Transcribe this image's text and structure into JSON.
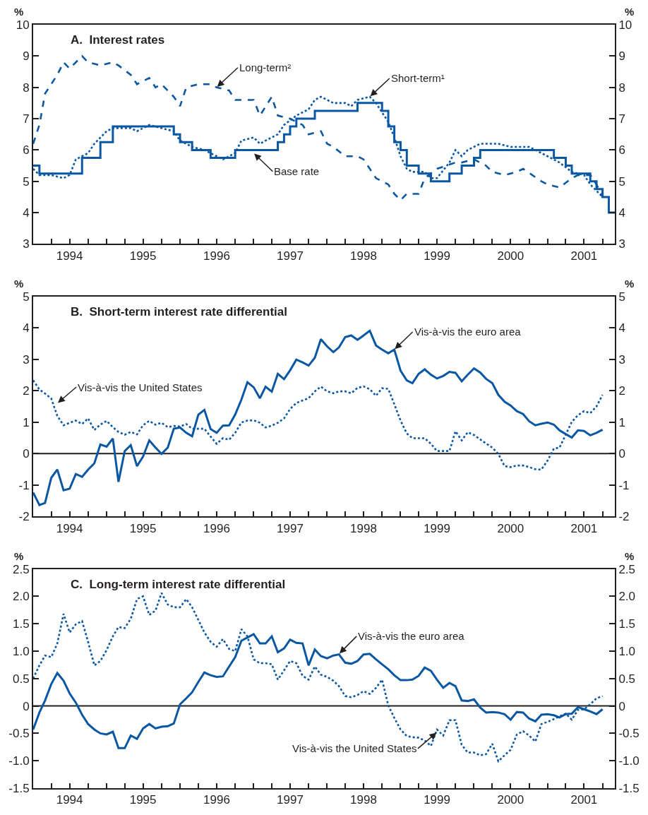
{
  "chart_data": [
    {
      "type": "line",
      "title": "A.  Interest rates",
      "ylabel": "%",
      "y2label": "%",
      "xlim": [
        "1994-01",
        "2001-12"
      ],
      "ylim": [
        3,
        10
      ],
      "yticks": [
        3,
        4,
        5,
        6,
        7,
        8,
        9,
        10
      ],
      "y2lim": [
        3,
        10
      ],
      "y2ticks": [
        3,
        4,
        5,
        6,
        7,
        8,
        9,
        10
      ],
      "xticks": [
        {
          "value": "1994-04",
          "label": null
        },
        {
          "value": "1994-07",
          "label": "1994"
        },
        {
          "value": "1994-10",
          "label": null
        },
        {
          "value": "1995-01",
          "label": null
        },
        {
          "value": "1995-04",
          "label": null
        },
        {
          "value": "1995-07",
          "label": "1995"
        },
        {
          "value": "1995-10",
          "label": null
        },
        {
          "value": "1996-01",
          "label": null
        },
        {
          "value": "1996-04",
          "label": null
        },
        {
          "value": "1996-07",
          "label": "1996"
        },
        {
          "value": "1996-10",
          "label": null
        },
        {
          "value": "1997-01",
          "label": null
        },
        {
          "value": "1997-04",
          "label": null
        },
        {
          "value": "1997-07",
          "label": "1997"
        },
        {
          "value": "1997-10",
          "label": null
        },
        {
          "value": "1998-01",
          "label": null
        },
        {
          "value": "1998-04",
          "label": null
        },
        {
          "value": "1998-07",
          "label": "1998"
        },
        {
          "value": "1998-10",
          "label": null
        },
        {
          "value": "1999-01",
          "label": null
        },
        {
          "value": "1999-04",
          "label": null
        },
        {
          "value": "1999-07",
          "label": "1999"
        },
        {
          "value": "1999-10",
          "label": null
        },
        {
          "value": "2000-01",
          "label": null
        },
        {
          "value": "2000-04",
          "label": null
        },
        {
          "value": "2000-07",
          "label": "2000"
        },
        {
          "value": "2000-10",
          "label": null
        },
        {
          "value": "2001-01",
          "label": null
        },
        {
          "value": "2001-04",
          "label": null
        },
        {
          "value": "2001-07",
          "label": "2001"
        },
        {
          "value": "2001-10",
          "label": null
        }
      ],
      "series": [
        {
          "type": "step",
          "color": "#0a57a3",
          "line_style": "solid",
          "x": [
            "1994-01",
            "1994-02",
            "1994-09",
            "1994-12",
            "1995-02",
            "1995-12",
            "1996-01",
            "1996-03",
            "1996-06",
            "1996-10",
            "1997-05",
            "1997-06",
            "1997-07",
            "1997-08",
            "1997-11",
            "1998-06",
            "1998-10",
            "1998-11",
            "1998-12",
            "1999-01",
            "1999-02",
            "1999-04",
            "1999-06",
            "1999-09",
            "1999-11",
            "2000-01",
            "2000-02",
            "2001-02",
            "2001-04",
            "2001-05",
            "2001-08",
            "2001-09",
            "2001-10",
            "2001-11",
            "2001-12"
          ],
          "values": [
            5.5,
            5.25,
            5.75,
            6.25,
            6.75,
            6.5,
            6.25,
            6.0,
            5.75,
            6.0,
            6.25,
            6.5,
            6.75,
            7.0,
            7.25,
            7.5,
            7.25,
            6.75,
            6.25,
            6.0,
            5.5,
            5.25,
            5.0,
            5.25,
            5.5,
            5.75,
            6.0,
            5.75,
            5.5,
            5.25,
            5.0,
            4.75,
            4.5,
            4.0,
            4.0
          ]
        },
        {
          "type": "line",
          "color": "#0a57a3",
          "line_style": "dotted",
          "x": [
            "1994-01",
            "1994-02",
            "1994-04",
            "1994-06",
            "1994-07",
            "1994-08",
            "1994-10",
            "1994-11",
            "1995-01",
            "1995-02",
            "1995-05",
            "1995-06",
            "1995-08",
            "1995-10",
            "1995-12",
            "1996-01",
            "1996-03",
            "1996-05",
            "1996-07",
            "1996-08",
            "1996-10",
            "1996-11",
            "1997-01",
            "1997-02",
            "1997-03",
            "1997-05",
            "1997-06",
            "1997-08",
            "1997-10",
            "1997-11",
            "1997-12",
            "1998-02",
            "1998-04",
            "1998-05",
            "1998-06",
            "1998-08",
            "1998-09",
            "1998-10",
            "1998-11",
            "1998-12",
            "1999-01",
            "1999-02",
            "1999-03",
            "1999-05",
            "1999-06",
            "1999-07",
            "1999-09",
            "1999-10",
            "1999-11",
            "1999-12",
            "2000-02",
            "2000-05",
            "2000-07",
            "2000-10",
            "2000-11",
            "2001-01",
            "2001-03",
            "2001-05",
            "2001-07",
            "2001-08",
            "2001-10"
          ],
          "values": [
            5.4,
            5.2,
            5.2,
            5.1,
            5.2,
            5.7,
            5.9,
            6.2,
            6.6,
            6.7,
            6.7,
            6.6,
            6.8,
            6.7,
            6.6,
            6.3,
            6.1,
            6.0,
            5.8,
            5.7,
            5.9,
            6.3,
            6.4,
            6.2,
            6.3,
            6.5,
            6.8,
            7.1,
            7.3,
            7.6,
            7.7,
            7.5,
            7.5,
            7.4,
            7.6,
            7.7,
            7.5,
            7.2,
            6.9,
            6.4,
            5.8,
            5.4,
            5.3,
            5.3,
            5.1,
            5.1,
            5.6,
            6.0,
            5.8,
            6.0,
            6.2,
            6.2,
            6.1,
            6.1,
            6.0,
            5.8,
            5.6,
            5.3,
            5.2,
            4.9,
            4.5
          ]
        },
        {
          "type": "line",
          "color": "#0a57a3",
          "line_style": "dashed",
          "x": [
            "1994-01",
            "1994-02",
            "1994-03",
            "1994-05",
            "1994-06",
            "1994-07",
            "1994-09",
            "1994-10",
            "1994-12",
            "1995-02",
            "1995-03",
            "1995-05",
            "1995-06",
            "1995-08",
            "1995-09",
            "1995-10",
            "1995-12",
            "1996-01",
            "1996-02",
            "1996-04",
            "1996-06",
            "1996-07",
            "1996-09",
            "1996-10",
            "1996-11",
            "1997-01",
            "1997-02",
            "1997-04",
            "1997-05",
            "1997-07",
            "1997-09",
            "1997-10",
            "1997-12",
            "1998-01",
            "1998-02",
            "1998-04",
            "1998-06",
            "1998-07",
            "1998-09",
            "1998-11",
            "1998-12",
            "1999-01",
            "1999-02",
            "1999-04",
            "1999-05",
            "1999-07",
            "1999-10",
            "1999-11",
            "2000-01",
            "2000-03",
            "2000-04",
            "2000-06",
            "2000-08",
            "2000-09",
            "2000-12",
            "2001-01",
            "2001-03",
            "2001-05",
            "2001-06",
            "2001-08",
            "2001-09",
            "2001-10"
          ],
          "values": [
            6.2,
            6.8,
            7.8,
            8.4,
            8.8,
            8.6,
            9.0,
            8.8,
            8.7,
            8.8,
            8.7,
            8.4,
            8.1,
            8.3,
            8.0,
            8.1,
            7.7,
            7.4,
            8.0,
            8.1,
            8.1,
            8.0,
            7.9,
            7.6,
            7.6,
            7.6,
            7.1,
            7.7,
            7.1,
            7.0,
            6.8,
            6.5,
            6.6,
            6.2,
            6.1,
            5.8,
            5.8,
            5.7,
            5.1,
            4.9,
            4.6,
            4.4,
            4.6,
            4.6,
            5.1,
            5.4,
            5.6,
            5.6,
            5.7,
            5.5,
            5.3,
            5.2,
            5.3,
            5.4,
            5.0,
            4.9,
            4.8,
            5.1,
            5.2,
            5.2,
            4.9,
            4.5
          ]
        }
      ],
      "annotations": [
        {
          "text": "Long-term²",
          "x": "1996-07",
          "y": 8.0
        },
        {
          "text": "Short-term¹",
          "x": "1998-08",
          "y": 7.7
        },
        {
          "text": "Base rate",
          "x": "1997-01",
          "y": 5.9
        }
      ]
    },
    {
      "type": "line",
      "title": "B.  Short-term interest rate differential",
      "ylabel": "%",
      "y2label": "%",
      "xlim": [
        "1994-01",
        "2001-12"
      ],
      "ylim": [
        -2,
        5
      ],
      "yticks": [
        -2,
        -1,
        0,
        1,
        2,
        3,
        4,
        5
      ],
      "y2lim": [
        -2,
        5
      ],
      "y2ticks": [
        -2,
        -1,
        0,
        1,
        2,
        3,
        4,
        5
      ],
      "xticks": [
        {
          "value": "1994-04",
          "label": null
        },
        {
          "value": "1994-07",
          "label": "1994"
        },
        {
          "value": "1994-10",
          "label": null
        },
        {
          "value": "1995-01",
          "label": null
        },
        {
          "value": "1995-04",
          "label": null
        },
        {
          "value": "1995-07",
          "label": "1995"
        },
        {
          "value": "1995-10",
          "label": null
        },
        {
          "value": "1996-01",
          "label": null
        },
        {
          "value": "1996-04",
          "label": null
        },
        {
          "value": "1996-07",
          "label": "1996"
        },
        {
          "value": "1996-10",
          "label": null
        },
        {
          "value": "1997-01",
          "label": null
        },
        {
          "value": "1997-04",
          "label": null
        },
        {
          "value": "1997-07",
          "label": "1997"
        },
        {
          "value": "1997-10",
          "label": null
        },
        {
          "value": "1998-01",
          "label": null
        },
        {
          "value": "1998-04",
          "label": null
        },
        {
          "value": "1998-07",
          "label": "1998"
        },
        {
          "value": "1998-10",
          "label": null
        },
        {
          "value": "1999-01",
          "label": null
        },
        {
          "value": "1999-04",
          "label": null
        },
        {
          "value": "1999-07",
          "label": "1999"
        },
        {
          "value": "1999-10",
          "label": null
        },
        {
          "value": "2000-01",
          "label": null
        },
        {
          "value": "2000-04",
          "label": null
        },
        {
          "value": "2000-07",
          "label": "2000"
        },
        {
          "value": "2000-10",
          "label": null
        },
        {
          "value": "2001-01",
          "label": null
        },
        {
          "value": "2001-04",
          "label": null
        },
        {
          "value": "2001-07",
          "label": "2001"
        },
        {
          "value": "2001-10",
          "label": null
        }
      ],
      "x": [
        "1994-01",
        "1994-02",
        "1994-03",
        "1994-04",
        "1994-05",
        "1994-06",
        "1994-07",
        "1994-08",
        "1994-09",
        "1994-10",
        "1994-11",
        "1994-12",
        "1995-01",
        "1995-02",
        "1995-03",
        "1995-04",
        "1995-05",
        "1995-06",
        "1995-07",
        "1995-08",
        "1995-09",
        "1995-10",
        "1995-11",
        "1995-12",
        "1996-01",
        "1996-02",
        "1996-03",
        "1996-04",
        "1996-05",
        "1996-06",
        "1996-07",
        "1996-08",
        "1996-09",
        "1996-10",
        "1996-11",
        "1996-12",
        "1997-01",
        "1997-02",
        "1997-03",
        "1997-04",
        "1997-05",
        "1997-06",
        "1997-07",
        "1997-08",
        "1997-09",
        "1997-10",
        "1997-11",
        "1997-12",
        "1998-01",
        "1998-02",
        "1998-03",
        "1998-04",
        "1998-05",
        "1998-06",
        "1998-07",
        "1998-08",
        "1998-09",
        "1998-10",
        "1998-11",
        "1998-12",
        "1999-01",
        "1999-02",
        "1999-03",
        "1999-04",
        "1999-05",
        "1999-06",
        "1999-07",
        "1999-08",
        "1999-09",
        "1999-10",
        "1999-11",
        "1999-12",
        "2000-01",
        "2000-02",
        "2000-03",
        "2000-04",
        "2000-05",
        "2000-06",
        "2000-07",
        "2000-08",
        "2000-09",
        "2000-10",
        "2000-11",
        "2000-12",
        "2001-01",
        "2001-02",
        "2001-03",
        "2001-04",
        "2001-05",
        "2001-06",
        "2001-07",
        "2001-08",
        "2001-09",
        "2001-10"
      ],
      "series": [
        {
          "color": "#0a57a3",
          "line_style": "solid",
          "values": [
            -1.24,
            -1.64,
            -1.57,
            -0.77,
            -0.51,
            -1.17,
            -1.12,
            -0.65,
            -0.74,
            -0.51,
            -0.31,
            0.29,
            0.22,
            0.48,
            -0.9,
            0.08,
            0.27,
            -0.4,
            -0.1,
            0.42,
            0.19,
            -0.01,
            0.19,
            0.79,
            0.83,
            0.66,
            0.55,
            1.24,
            1.39,
            0.78,
            0.66,
            0.89,
            0.9,
            1.24,
            1.72,
            2.27,
            2.11,
            1.76,
            2.13,
            1.97,
            2.54,
            2.37,
            2.65,
            2.99,
            2.9,
            2.8,
            3.05,
            3.64,
            3.41,
            3.23,
            3.38,
            3.71,
            3.76,
            3.62,
            3.76,
            3.91,
            3.44,
            3.31,
            3.19,
            3.31,
            2.64,
            2.33,
            2.24,
            2.54,
            2.68,
            2.51,
            2.39,
            2.47,
            2.6,
            2.57,
            2.3,
            2.51,
            2.71,
            2.58,
            2.38,
            2.24,
            1.87,
            1.65,
            1.53,
            1.35,
            1.26,
            1.03,
            0.9,
            0.95,
            0.99,
            0.92,
            0.74,
            0.62,
            0.51,
            0.74,
            0.72,
            0.58,
            0.66,
            0.76
          ]
        },
        {
          "color": "#0a57a3",
          "line_style": "dotted",
          "values": [
            2.33,
            2.04,
            1.91,
            1.75,
            1.2,
            0.9,
            0.98,
            1.05,
            0.94,
            1.12,
            0.75,
            0.92,
            1.04,
            0.84,
            0.69,
            0.6,
            0.69,
            0.61,
            0.9,
            1.04,
            0.92,
            0.98,
            0.84,
            0.88,
            0.86,
            0.94,
            0.79,
            0.79,
            0.79,
            0.54,
            0.31,
            0.49,
            0.44,
            0.66,
            0.99,
            1.05,
            1.06,
            0.98,
            0.83,
            0.89,
            0.98,
            1.12,
            1.42,
            1.61,
            1.69,
            1.76,
            1.98,
            2.13,
            1.98,
            1.92,
            1.98,
            1.98,
            1.92,
            2.09,
            2.14,
            2.05,
            1.84,
            2.08,
            2.06,
            1.57,
            1.05,
            0.64,
            0.49,
            0.49,
            0.49,
            0.31,
            0.08,
            0.08,
            0.08,
            0.71,
            0.42,
            0.68,
            0.59,
            0.45,
            0.32,
            0.19,
            -0.01,
            -0.4,
            -0.43,
            -0.38,
            -0.38,
            -0.43,
            -0.5,
            -0.51,
            -0.22,
            0.16,
            0.19,
            0.6,
            1.01,
            1.22,
            1.35,
            1.29,
            1.5,
            1.87
          ]
        }
      ],
      "ref_lines": [
        {
          "axis": "y",
          "value": 0,
          "color": "#231f20"
        }
      ],
      "annotations": [
        {
          "text": "Vis-à-vis the euro area",
          "x": "1998-12",
          "y": 3.31
        },
        {
          "text": "Vis-à-vis the United States",
          "x": "1994-05",
          "y": 1.6
        }
      ]
    },
    {
      "type": "line",
      "title": "C.  Long-term interest rate differential",
      "ylabel": "%",
      "y2label": "%",
      "xlim": [
        "1994-01",
        "2001-12"
      ],
      "ylim": [
        -1.5,
        2.5
      ],
      "yticks": [
        -1.5,
        {
          "value": -1,
          "label": "-1.0"
        },
        -0.5,
        0,
        0.5,
        {
          "value": 1,
          "label": "1.0"
        },
        1.5,
        {
          "value": 2,
          "label": "2.0"
        },
        2.5
      ],
      "y2lim": [
        -1.5,
        2.5
      ],
      "y2ticks": [
        -1.5,
        {
          "value": -1,
          "label": "-1.0"
        },
        -0.5,
        0,
        0.5,
        {
          "value": 1,
          "label": "1.0"
        },
        1.5,
        {
          "value": 2,
          "label": "2.0"
        },
        2.5
      ],
      "xticks": [
        {
          "value": "1994-04",
          "label": null
        },
        {
          "value": "1994-07",
          "label": "1994"
        },
        {
          "value": "1994-10",
          "label": null
        },
        {
          "value": "1995-01",
          "label": null
        },
        {
          "value": "1995-04",
          "label": null
        },
        {
          "value": "1995-07",
          "label": "1995"
        },
        {
          "value": "1995-10",
          "label": null
        },
        {
          "value": "1996-01",
          "label": null
        },
        {
          "value": "1996-04",
          "label": null
        },
        {
          "value": "1996-07",
          "label": "1996"
        },
        {
          "value": "1996-10",
          "label": null
        },
        {
          "value": "1997-01",
          "label": null
        },
        {
          "value": "1997-04",
          "label": null
        },
        {
          "value": "1997-07",
          "label": "1997"
        },
        {
          "value": "1997-10",
          "label": null
        },
        {
          "value": "1998-01",
          "label": null
        },
        {
          "value": "1998-04",
          "label": null
        },
        {
          "value": "1998-07",
          "label": "1998"
        },
        {
          "value": "1998-10",
          "label": null
        },
        {
          "value": "1999-01",
          "label": null
        },
        {
          "value": "1999-04",
          "label": null
        },
        {
          "value": "1999-07",
          "label": "1999"
        },
        {
          "value": "1999-10",
          "label": null
        },
        {
          "value": "2000-01",
          "label": null
        },
        {
          "value": "2000-04",
          "label": null
        },
        {
          "value": "2000-07",
          "label": "2000"
        },
        {
          "value": "2000-10",
          "label": null
        },
        {
          "value": "2001-01",
          "label": null
        },
        {
          "value": "2001-04",
          "label": null
        },
        {
          "value": "2001-07",
          "label": "2001"
        },
        {
          "value": "2001-10",
          "label": null
        }
      ],
      "x": [
        "1994-01",
        "1994-02",
        "1994-03",
        "1994-04",
        "1994-05",
        "1994-06",
        "1994-07",
        "1994-08",
        "1994-09",
        "1994-10",
        "1994-11",
        "1994-12",
        "1995-01",
        "1995-02",
        "1995-03",
        "1995-04",
        "1995-05",
        "1995-06",
        "1995-07",
        "1995-08",
        "1995-09",
        "1995-10",
        "1995-11",
        "1995-12",
        "1996-01",
        "1996-02",
        "1996-03",
        "1996-04",
        "1996-05",
        "1996-06",
        "1996-07",
        "1996-08",
        "1996-09",
        "1996-10",
        "1996-11",
        "1996-12",
        "1997-01",
        "1997-02",
        "1997-03",
        "1997-04",
        "1997-05",
        "1997-06",
        "1997-07",
        "1997-08",
        "1997-09",
        "1997-10",
        "1997-11",
        "1997-12",
        "1998-01",
        "1998-02",
        "1998-03",
        "1998-04",
        "1998-05",
        "1998-06",
        "1998-07",
        "1998-08",
        "1998-09",
        "1998-10",
        "1998-11",
        "1998-12",
        "1999-01",
        "1999-02",
        "1999-03",
        "1999-04",
        "1999-05",
        "1999-06",
        "1999-07",
        "1999-08",
        "1999-09",
        "1999-10",
        "1999-11",
        "1999-12",
        "2000-01",
        "2000-02",
        "2000-03",
        "2000-04",
        "2000-05",
        "2000-06",
        "2000-07",
        "2000-08",
        "2000-09",
        "2000-10",
        "2000-11",
        "2000-12",
        "2001-01",
        "2001-02",
        "2001-03",
        "2001-04",
        "2001-05",
        "2001-06",
        "2001-07",
        "2001-08",
        "2001-09",
        "2001-10"
      ],
      "series": [
        {
          "color": "#0a57a3",
          "line_style": "solid",
          "values": [
            -0.43,
            -0.12,
            0.1,
            0.4,
            0.6,
            0.46,
            0.23,
            0.06,
            -0.16,
            -0.33,
            -0.43,
            -0.5,
            -0.52,
            -0.47,
            -0.77,
            -0.77,
            -0.54,
            -0.6,
            -0.41,
            -0.33,
            -0.41,
            -0.38,
            -0.37,
            -0.32,
            0.03,
            0.14,
            0.25,
            0.44,
            0.61,
            0.56,
            0.53,
            0.54,
            0.72,
            0.89,
            1.19,
            1.25,
            1.31,
            1.14,
            1.14,
            1.27,
            0.98,
            1.05,
            1.21,
            1.15,
            1.14,
            0.74,
            1.03,
            0.91,
            0.87,
            0.92,
            0.94,
            0.79,
            0.77,
            0.82,
            0.94,
            0.95,
            0.85,
            0.76,
            0.67,
            0.56,
            0.47,
            0.47,
            0.48,
            0.55,
            0.7,
            0.64,
            0.48,
            0.33,
            0.42,
            0.36,
            0.1,
            0.09,
            0.12,
            -0.03,
            -0.12,
            -0.11,
            -0.12,
            -0.15,
            -0.25,
            -0.11,
            -0.12,
            -0.23,
            -0.28,
            -0.16,
            -0.15,
            -0.17,
            -0.21,
            -0.15,
            -0.14,
            -0.02,
            -0.06,
            -0.1,
            -0.15,
            -0.06
          ]
        },
        {
          "color": "#0a57a3",
          "line_style": "dotted",
          "values": [
            0.5,
            0.74,
            0.92,
            0.89,
            1.14,
            1.68,
            1.34,
            1.49,
            1.55,
            1.17,
            0.74,
            0.82,
            1.02,
            1.27,
            1.44,
            1.42,
            1.59,
            1.95,
            2.0,
            1.66,
            1.74,
            2.06,
            1.85,
            1.8,
            1.8,
            1.95,
            1.8,
            1.57,
            1.34,
            1.17,
            1.08,
            1.22,
            1.04,
            1.0,
            1.4,
            1.27,
            0.85,
            0.78,
            0.78,
            0.76,
            0.48,
            0.65,
            0.82,
            0.78,
            0.55,
            0.48,
            0.72,
            0.57,
            0.53,
            0.46,
            0.36,
            0.18,
            0.16,
            0.2,
            0.27,
            0.22,
            0.33,
            0.48,
            0.01,
            -0.22,
            -0.43,
            -0.55,
            -0.57,
            -0.58,
            -0.63,
            -0.73,
            -0.43,
            -0.54,
            -0.26,
            -0.26,
            -0.71,
            -0.85,
            -0.85,
            -0.9,
            -0.88,
            -0.69,
            -1.01,
            -0.9,
            -0.8,
            -0.52,
            -0.46,
            -0.54,
            -0.65,
            -0.33,
            -0.29,
            -0.24,
            -0.19,
            -0.14,
            -0.25,
            -0.07,
            -0.06,
            0.03,
            0.14,
            0.18
          ]
        }
      ],
      "ref_lines": [
        {
          "axis": "y",
          "value": 0,
          "color": "#231f20"
        }
      ],
      "annotations": [
        {
          "text": "Vis-à-vis the euro area",
          "x": "1998-03",
          "y": 0.95
        },
        {
          "text": "Vis-à-vis the United States",
          "x": "1999-07",
          "y": -0.48
        }
      ]
    }
  ]
}
